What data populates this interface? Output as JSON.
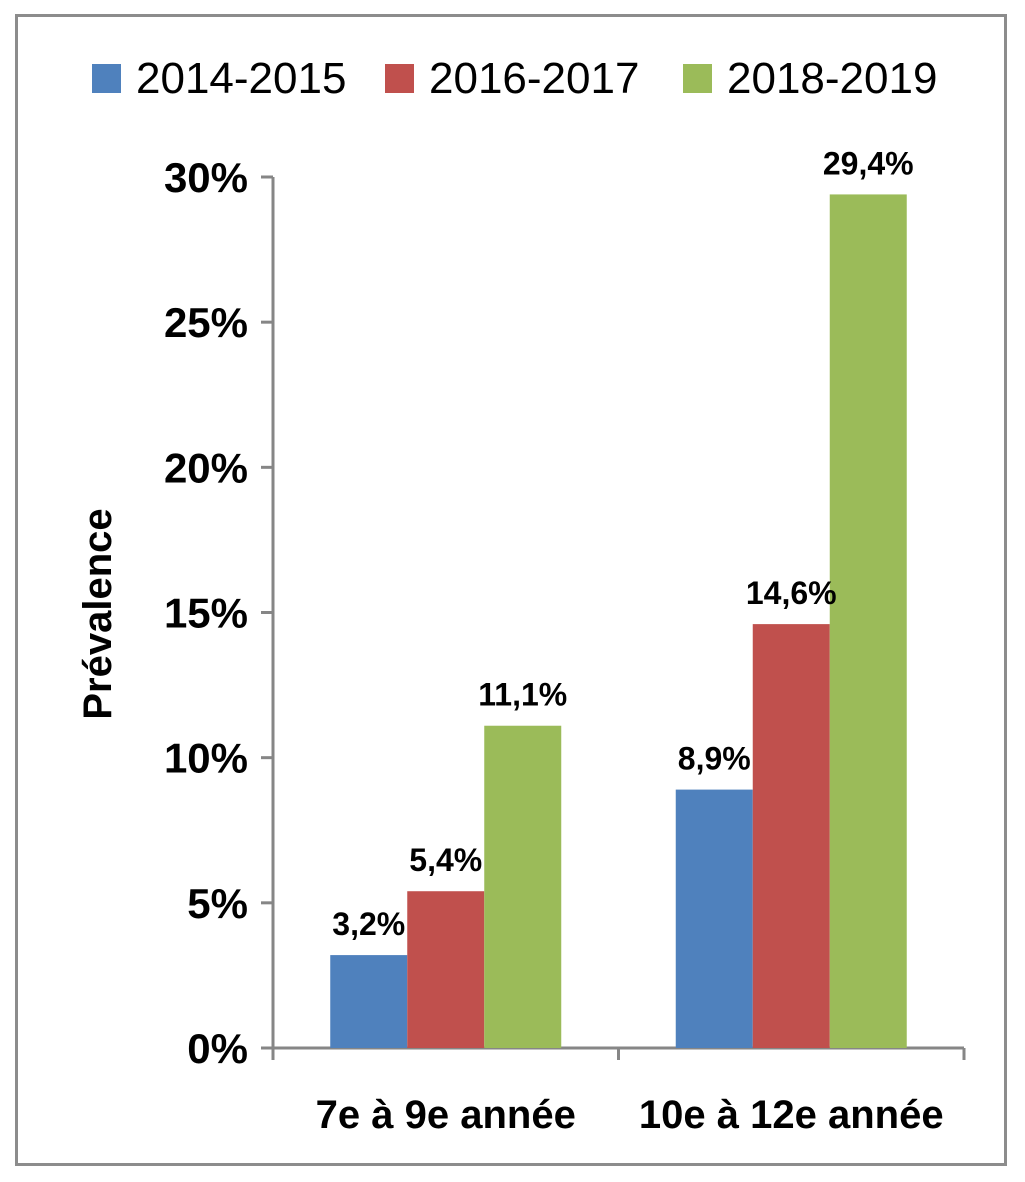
{
  "chart_data": {
    "type": "bar",
    "title": "",
    "xlabel": "",
    "ylabel": "Prévalence",
    "ylim": [
      0,
      30
    ],
    "y_ticks": [
      {
        "value": 0,
        "label": "0%"
      },
      {
        "value": 5,
        "label": "5%"
      },
      {
        "value": 10,
        "label": "10%"
      },
      {
        "value": 15,
        "label": "15%"
      },
      {
        "value": 20,
        "label": "20%"
      },
      {
        "value": 25,
        "label": "25%"
      },
      {
        "value": 30,
        "label": "30%"
      }
    ],
    "categories": [
      "7e à 9e année",
      "10e à 12e année"
    ],
    "series": [
      {
        "name": "2014-2015",
        "color": "#4f81bd",
        "values": [
          3.2,
          8.9
        ],
        "labels": [
          "3,2%",
          "8,9%"
        ]
      },
      {
        "name": "2016-2017",
        "color": "#c0504d",
        "values": [
          5.4,
          14.6
        ],
        "labels": [
          "5,4%",
          "14,6%"
        ]
      },
      {
        "name": "2018-2019",
        "color": "#9bbb59",
        "values": [
          11.1,
          29.4
        ],
        "labels": [
          "11,1%",
          "29,4%"
        ]
      }
    ],
    "legend_position": "top",
    "grid": false
  }
}
